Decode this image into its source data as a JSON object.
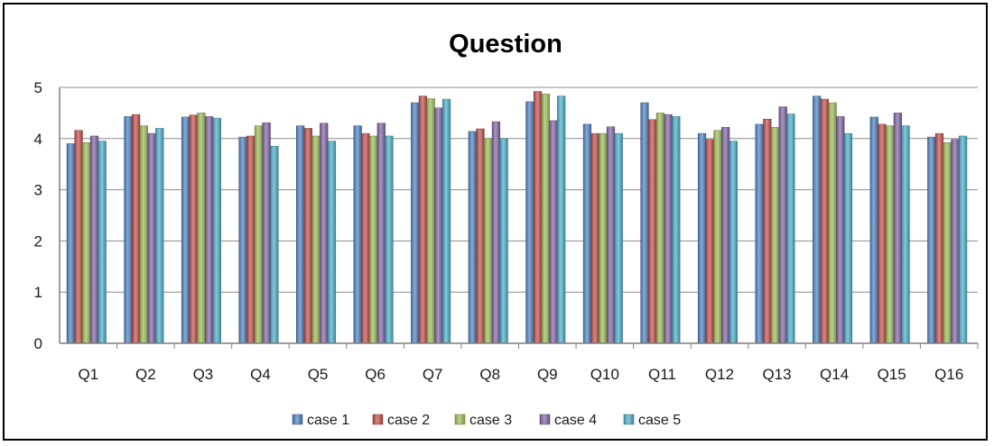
{
  "chart_data": {
    "type": "bar",
    "title": "Question",
    "xlabel": "",
    "ylabel": "",
    "ylim": [
      0,
      5
    ],
    "yticks": [
      0,
      1,
      2,
      3,
      4,
      5
    ],
    "grid": true,
    "legend_position": "bottom",
    "categories": [
      "Q1",
      "Q2",
      "Q3",
      "Q4",
      "Q5",
      "Q6",
      "Q7",
      "Q8",
      "Q9",
      "Q10",
      "Q11",
      "Q12",
      "Q13",
      "Q14",
      "Q15",
      "Q16"
    ],
    "series": [
      {
        "name": "case 1",
        "color": "#4a7ebb",
        "values": [
          3.9,
          4.43,
          4.42,
          4.03,
          4.25,
          4.25,
          4.7,
          4.14,
          4.72,
          4.28,
          4.7,
          4.1,
          4.28,
          4.83,
          4.42,
          4.03
        ]
      },
      {
        "name": "case 2",
        "color": "#be4b48",
        "values": [
          4.16,
          4.47,
          4.46,
          4.05,
          4.2,
          4.1,
          4.83,
          4.19,
          4.92,
          4.1,
          4.37,
          3.98,
          4.38,
          4.77,
          4.28,
          4.1
        ]
      },
      {
        "name": "case 3",
        "color": "#98b954",
        "values": [
          3.92,
          4.25,
          4.5,
          4.25,
          4.05,
          4.05,
          4.78,
          4.0,
          4.87,
          4.1,
          4.5,
          4.16,
          4.22,
          4.7,
          4.25,
          3.92
        ]
      },
      {
        "name": "case 4",
        "color": "#7d60a0",
        "values": [
          4.05,
          4.1,
          4.43,
          4.31,
          4.3,
          4.3,
          4.6,
          4.33,
          4.35,
          4.23,
          4.47,
          4.22,
          4.62,
          4.43,
          4.5,
          3.98
        ]
      },
      {
        "name": "case 5",
        "color": "#46aac5",
        "values": [
          3.95,
          4.2,
          4.4,
          3.85,
          3.95,
          4.05,
          4.77,
          4.0,
          4.83,
          4.1,
          4.43,
          3.95,
          4.48,
          4.1,
          4.25,
          4.05
        ]
      }
    ]
  }
}
